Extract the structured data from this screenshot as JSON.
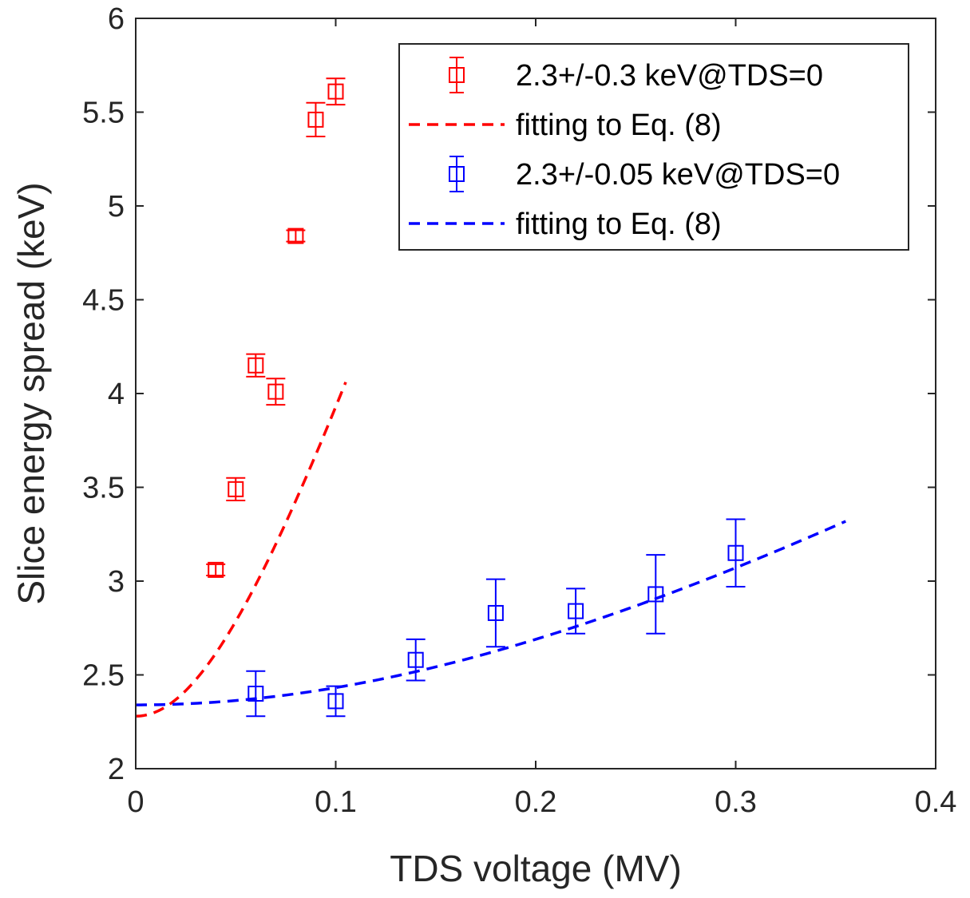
{
  "chart_data": {
    "type": "scatter",
    "xlabel": "TDS voltage (MV)",
    "ylabel": "Slice energy spread (keV)",
    "xlim": [
      0,
      0.4
    ],
    "ylim": [
      2,
      6
    ],
    "xticks": [
      0,
      0.1,
      0.2,
      0.3,
      0.4
    ],
    "xtick_labels": [
      "0",
      "0.1",
      "0.2",
      "0.3",
      "0.4"
    ],
    "yticks": [
      2,
      2.5,
      3,
      3.5,
      4,
      4.5,
      5,
      5.5,
      6
    ],
    "ytick_labels": [
      "2",
      "2.5",
      "3",
      "3.5",
      "4",
      "4.5",
      "5",
      "5.5",
      "6"
    ],
    "grid": false,
    "legend_position": "top-right",
    "series": [
      {
        "name": "2.3+/-0.3 keV@TDS=0",
        "kind": "errorbar",
        "color": "#ff0000",
        "x": [
          0.04,
          0.05,
          0.06,
          0.07,
          0.08,
          0.09,
          0.1
        ],
        "y": [
          3.06,
          3.49,
          4.15,
          4.01,
          4.84,
          5.46,
          5.61
        ],
        "err": [
          0.03,
          0.06,
          0.06,
          0.07,
          0.03,
          0.09,
          0.07
        ]
      },
      {
        "name": "fitting to Eq. (8)",
        "kind": "fit-line",
        "color": "#ff0000",
        "sigma0": 2.28,
        "k": 32.0,
        "x_range": [
          0,
          0.105
        ]
      },
      {
        "name": "2.3+/-0.05 keV@TDS=0",
        "kind": "errorbar",
        "color": "#0000ff",
        "x": [
          0.06,
          0.1,
          0.14,
          0.18,
          0.22,
          0.26,
          0.3
        ],
        "y": [
          2.4,
          2.36,
          2.58,
          2.83,
          2.84,
          2.93,
          3.15
        ],
        "err": [
          0.12,
          0.08,
          0.11,
          0.18,
          0.12,
          0.21,
          0.18
        ]
      },
      {
        "name": "fitting to Eq. (8)",
        "kind": "fit-line",
        "color": "#0000ff",
        "sigma0": 2.34,
        "k": 6.63,
        "x_range": [
          0,
          0.355
        ]
      }
    ]
  }
}
